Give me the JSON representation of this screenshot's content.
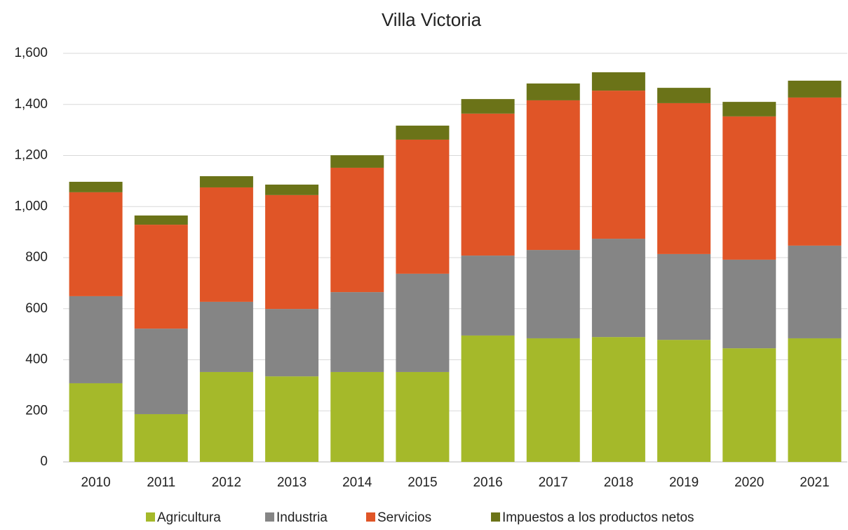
{
  "chart_data": {
    "type": "stacked_bar",
    "title": "Villa Victoria",
    "categories": [
      "2010",
      "2011",
      "2012",
      "2013",
      "2014",
      "2015",
      "2016",
      "2017",
      "2018",
      "2019",
      "2020",
      "2021"
    ],
    "series": [
      {
        "name": "Agricultura",
        "color": "#a5b92a",
        "values": [
          308,
          187,
          352,
          335,
          352,
          352,
          495,
          484,
          489,
          478,
          445,
          484
        ]
      },
      {
        "name": "Industria",
        "color": "#858585",
        "values": [
          341,
          335,
          275,
          264,
          313,
          385,
          313,
          346,
          385,
          336,
          347,
          363
        ]
      },
      {
        "name": "Servicios",
        "color": "#e05527",
        "values": [
          407,
          407,
          448,
          446,
          487,
          525,
          556,
          586,
          580,
          591,
          561,
          580
        ]
      },
      {
        "name": "Impuestos a los productos netos",
        "color": "#6b7318",
        "values": [
          41,
          36,
          44,
          41,
          49,
          55,
          57,
          66,
          72,
          60,
          57,
          66
        ]
      }
    ],
    "ylim": [
      0,
      1600
    ],
    "yticks": [
      0,
      200,
      400,
      600,
      800,
      {
        "value": 1000,
        "label": "1,000"
      },
      {
        "value": 1200,
        "label": "1,200"
      },
      {
        "value": 1400,
        "label": "1,400"
      },
      {
        "value": 1600,
        "label": "1,600"
      }
    ],
    "grid": true,
    "legend": "bottom"
  }
}
